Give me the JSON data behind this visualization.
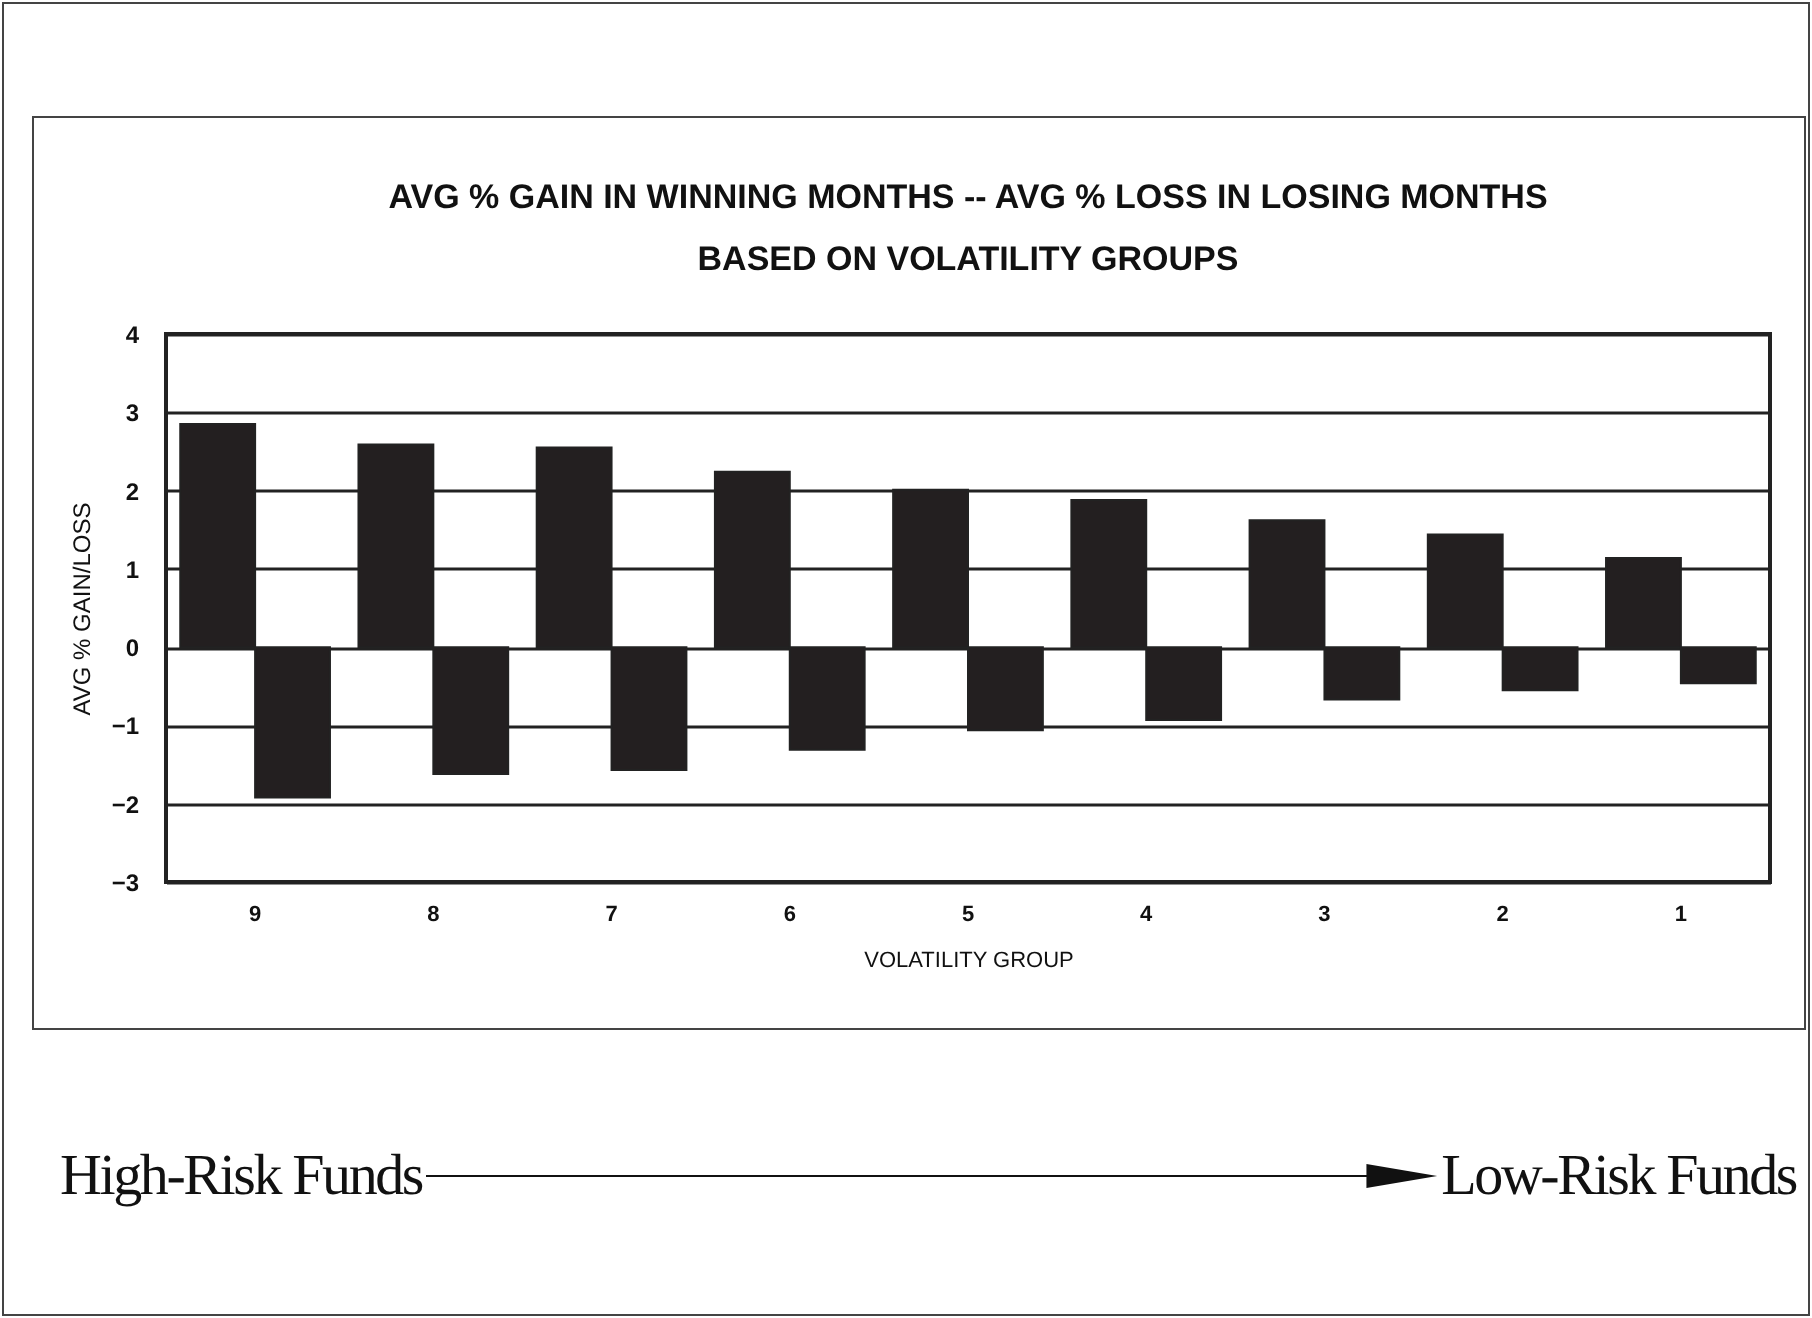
{
  "chart_data": {
    "type": "bar",
    "title": "AVG % GAIN IN WINNING MONTHS -- AVG % LOSS IN LOSING MONTHS",
    "subtitle": "BASED ON VOLATILITY GROUPS",
    "xlabel": "VOLATILITY GROUP",
    "ylabel": "AVG % GAIN/LOSS",
    "categories": [
      "9",
      "8",
      "7",
      "6",
      "5",
      "4",
      "3",
      "2",
      "1"
    ],
    "series": [
      {
        "color": "#231f20",
        "values": [
          2.85,
          2.59,
          2.55,
          2.24,
          2.01,
          1.88,
          1.62,
          1.44,
          1.14
        ]
      },
      {
        "color": "#231f20",
        "values": [
          -1.92,
          -1.62,
          -1.57,
          -1.31,
          -1.06,
          -0.93,
          -0.67,
          -0.55,
          -0.46
        ]
      }
    ],
    "ylim": [
      -3,
      4
    ],
    "yticks": [
      -3,
      -2,
      -1,
      0,
      1,
      2,
      3,
      4
    ],
    "grid": "y",
    "annotations": [
      "High-Risk Funds",
      "Low-Risk Funds"
    ]
  }
}
